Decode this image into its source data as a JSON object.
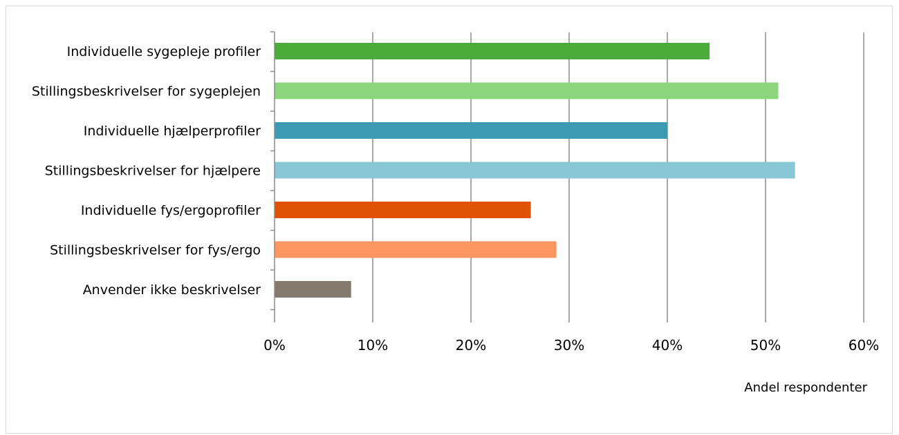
{
  "chart_data": {
    "type": "bar",
    "orientation": "horizontal",
    "categories": [
      "Individuelle sygepleje profiler",
      "Stillingsbeskrivelser for sygeplejen",
      "Individuelle hjælperprofiler",
      "Stillingsbeskrivelser for hjælpere",
      "Individuelle fys/ergoprofiler",
      "Stillingsbeskrivelser for fys/ergo",
      "Anvender ikke beskrivelser"
    ],
    "values": [
      44.3,
      51.3,
      40.0,
      53.0,
      26.1,
      28.7,
      7.8
    ],
    "bar_colors": [
      "#4aaa3a",
      "#8ed67e",
      "#3e9ab0",
      "#88c8d6",
      "#e05206",
      "#fc9560",
      "#847a6e"
    ],
    "xlabel": "Andel respondenter",
    "ylabel": "",
    "xlim": [
      0,
      60
    ],
    "x_ticks": [
      0,
      10,
      20,
      30,
      40,
      50,
      60
    ],
    "x_tick_labels": [
      "0%",
      "10%",
      "20%",
      "30%",
      "40%",
      "50%",
      "60%"
    ],
    "grid": "vertical",
    "legend": "none"
  }
}
